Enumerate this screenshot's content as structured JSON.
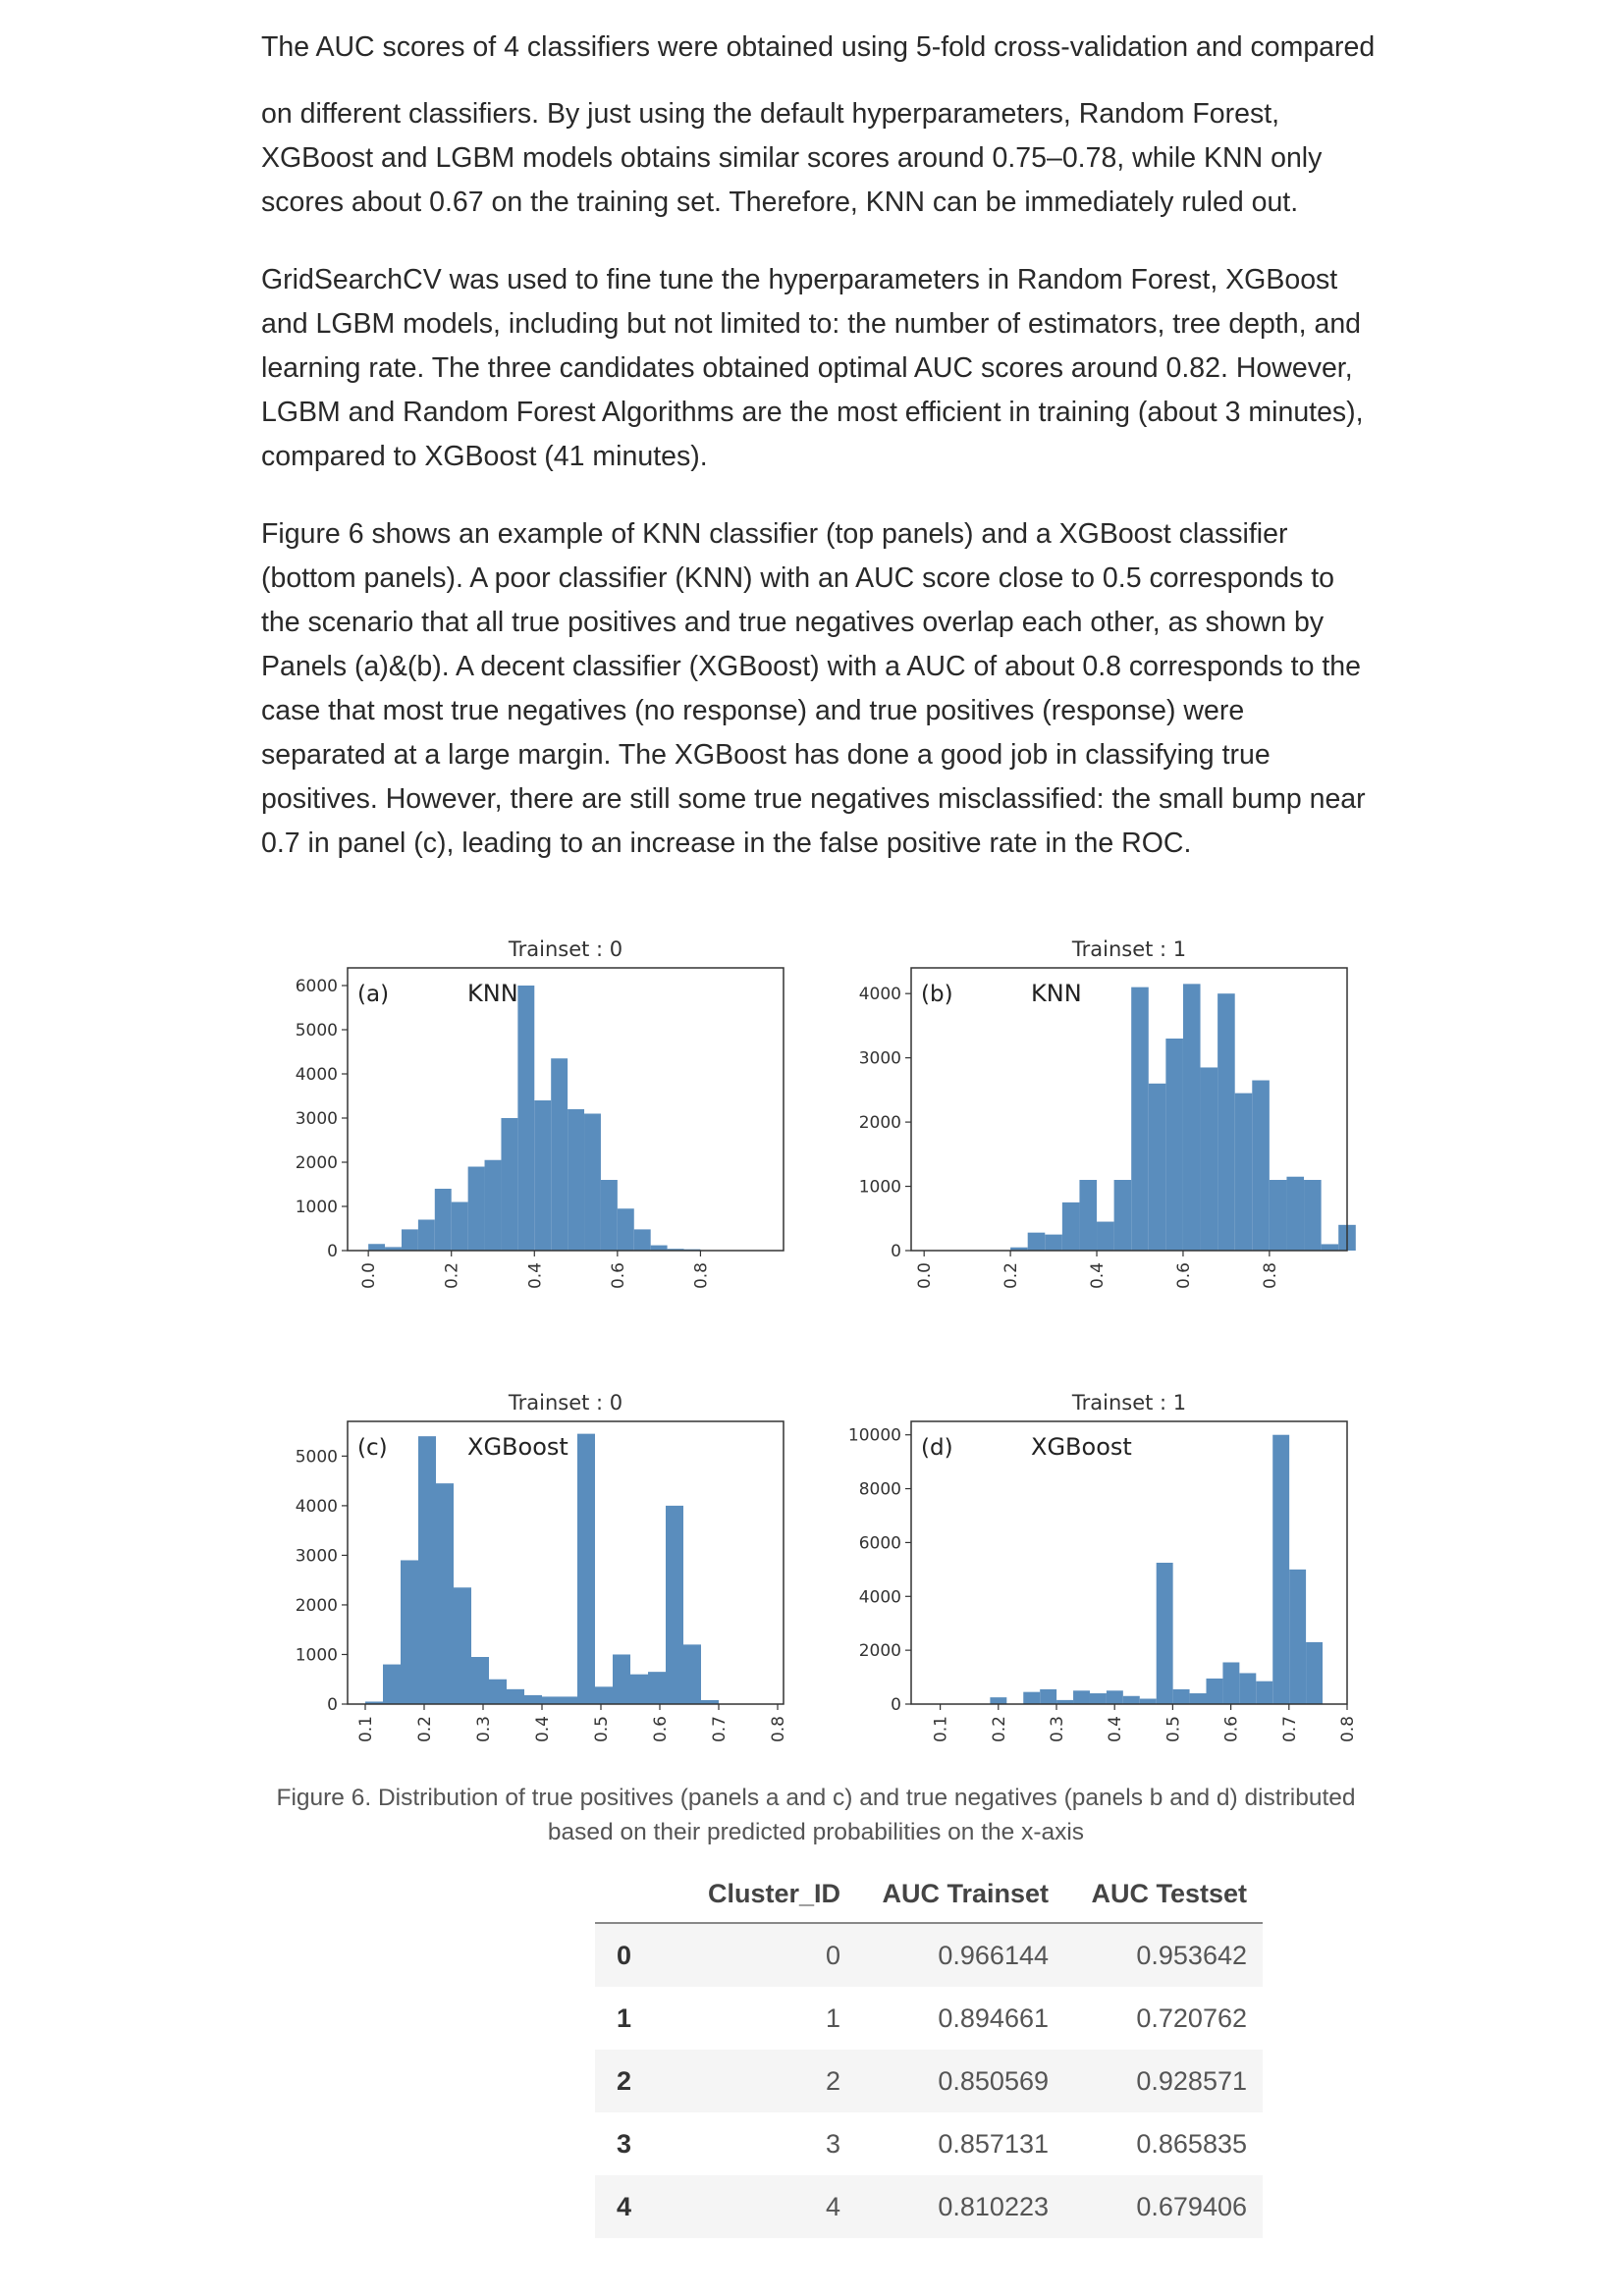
{
  "paragraphs": [
    "on different classifiers. By just using the default hyperparameters, Random Forest, XGBoost and LGBM models obtains similar scores around 0.75–0.78, while KNN only scores about 0.67 on the training set. Therefore, KNN can be immediately ruled out.",
    "GridSearchCV was used to fine tune the hyperparameters in Random Forest, XGBoost and LGBM models, including but not limited to: the number of estimators, tree depth, and learning rate. The three candidates obtained optimal AUC scores around 0.82. However, LGBM and Random Forest Algorithms are the most efficient in training (about 3 minutes), compared to XGBoost (41 minutes).",
    "Figure 6 shows an example of KNN classifier (top panels) and a XGBoost classifier (bottom panels). A poor classifier (KNN) with an AUC score close to 0.5 corresponds to the scenario that all true positives and true negatives overlap each other, as shown by Panels (a)&(b). A decent classifier (XGBoost) with a AUC of about 0.8 corresponds to the case that most true negatives (no response) and true positives (response) were separated at a large margin. The XGBoost has done a good job in classifying true positives. However, there are still some true negatives misclassified: the small bump near 0.7 in panel (c), leading to an increase in the false positive rate in the ROC."
  ],
  "cut_line": "The AUC scores of 4 classifiers were obtained using 5-fold cross-validation and compared",
  "colors": {
    "bar": "#5a8dbd",
    "text": "#292929"
  },
  "chart_data": [
    {
      "type": "bar",
      "title": "Trainset : 0",
      "panel_label": "(a)",
      "model_label": "KNN",
      "bin_start": 0.0,
      "bin_width": 0.04,
      "xticks": [
        "0.0",
        "0.2",
        "0.4",
        "0.6",
        "0.8"
      ],
      "xlim": [
        -0.05,
        1.0
      ],
      "yticks": [
        "0",
        "1000",
        "2000",
        "3000",
        "4000",
        "5000",
        "6000"
      ],
      "ylim": [
        0,
        6400
      ],
      "values": [
        150,
        80,
        480,
        700,
        1400,
        1100,
        1900,
        2050,
        3000,
        6000,
        3400,
        4350,
        3200,
        3100,
        1600,
        950,
        480,
        120,
        40,
        30,
        10
      ]
    },
    {
      "type": "bar",
      "title": "Trainset : 1",
      "panel_label": "(b)",
      "model_label": "KNN",
      "bin_start": 0.0,
      "bin_width": 0.04,
      "xticks": [
        "0.0",
        "0.2",
        "0.4",
        "0.6",
        "0.8"
      ],
      "xlim": [
        -0.03,
        0.98
      ],
      "yticks": [
        "0",
        "1000",
        "2000",
        "3000",
        "4000"
      ],
      "ylim": [
        0,
        4400
      ],
      "values": [
        0,
        0,
        0,
        0,
        0,
        50,
        280,
        250,
        750,
        1100,
        450,
        1100,
        4100,
        2600,
        3300,
        4150,
        2850,
        4000,
        2450,
        2650,
        1100,
        1150,
        1100,
        100,
        400
      ]
    },
    {
      "type": "bar",
      "title": "Trainset : 0",
      "panel_label": "(c)",
      "model_label": "XGBoost",
      "bin_start": 0.1,
      "bin_width": 0.03,
      "xticks": [
        "0.1",
        "0.2",
        "0.3",
        "0.4",
        "0.5",
        "0.6",
        "0.7",
        "0.8"
      ],
      "xlim": [
        0.07,
        0.81
      ],
      "yticks": [
        "0",
        "1000",
        "2000",
        "3000",
        "4000",
        "5000"
      ],
      "ylim": [
        0,
        5700
      ],
      "values": [
        50,
        800,
        2900,
        5400,
        4450,
        2350,
        950,
        500,
        300,
        180,
        150,
        150,
        5450,
        350,
        1000,
        600,
        650,
        4000,
        1200,
        80
      ]
    },
    {
      "type": "bar",
      "title": "Trainset : 1",
      "panel_label": "(d)",
      "model_label": "XGBoost",
      "bin_start": 0.1,
      "bin_width": 0.0286,
      "xticks": [
        "0.1",
        "0.2",
        "0.3",
        "0.4",
        "0.5",
        "0.6",
        "0.7",
        "0.8"
      ],
      "xlim": [
        0.05,
        0.8
      ],
      "yticks": [
        "0",
        "2000",
        "4000",
        "6000",
        "8000",
        "10000"
      ],
      "ylim": [
        0,
        10500
      ],
      "values": [
        0,
        0,
        0,
        250,
        0,
        450,
        550,
        150,
        500,
        400,
        500,
        300,
        200,
        5250,
        550,
        400,
        950,
        1550,
        1150,
        850,
        10000,
        5000,
        2300
      ]
    }
  ],
  "caption": "Figure 6. Distribution of true positives (panels a and c) and true negatives (panels b and d) distributed based on their predicted probabilities on the x-axis",
  "table": {
    "headers": [
      "",
      "Cluster_ID",
      "AUC Trainset",
      "AUC Testset"
    ],
    "rows": [
      [
        "0",
        "0",
        "0.966144",
        "0.953642"
      ],
      [
        "1",
        "1",
        "0.894661",
        "0.720762"
      ],
      [
        "2",
        "2",
        "0.850569",
        "0.928571"
      ],
      [
        "3",
        "3",
        "0.857131",
        "0.865835"
      ],
      [
        "4",
        "4",
        "0.810223",
        "0.679406"
      ]
    ]
  }
}
